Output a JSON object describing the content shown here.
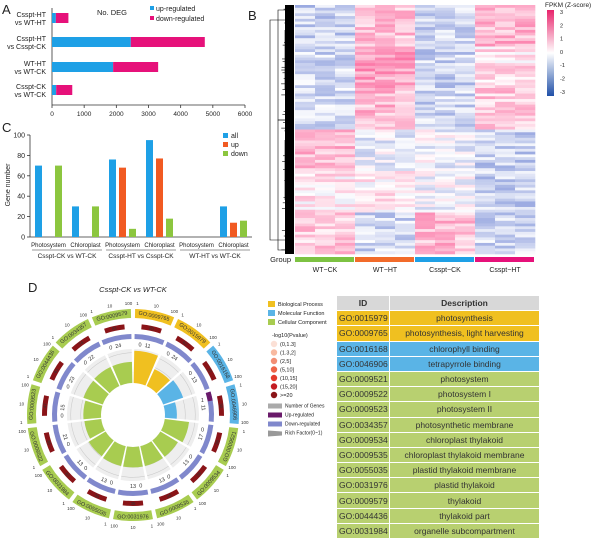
{
  "panels": {
    "a": "A",
    "b": "B",
    "c": "C",
    "d": "D"
  },
  "chart_data": [
    {
      "type": "bar",
      "orientation": "horizontal",
      "stacked": true,
      "title": "No. DEG",
      "categories": [
        "Csspt-HT vs WT-HT",
        "Csspt-HT vs Csspt-CK",
        "WT-HT vs WT-CK",
        "Csspt-CK vs WT-CK"
      ],
      "series": [
        {
          "name": "up-regulated",
          "color": "#1ea0e6",
          "values": [
            120,
            2450,
            1900,
            130
          ]
        },
        {
          "name": "down-regulated",
          "color": "#e6117a",
          "values": [
            390,
            2300,
            1400,
            500
          ]
        }
      ],
      "xlim": [
        0,
        6000
      ],
      "xticks": [
        0,
        1000,
        2000,
        3000,
        4000,
        5000,
        6000
      ],
      "legend": "top-right"
    },
    {
      "type": "heatmap",
      "title": "FPKM (Z-score)",
      "colorbar_ticks": [
        3,
        2,
        1,
        0,
        -1,
        -2,
        -3
      ],
      "group_label": "Group",
      "groups": [
        {
          "name": "WT−CK",
          "color": "#7dc242"
        },
        {
          "name": "WT−HT",
          "color": "#f26b2a"
        },
        {
          "name": "Csspt−CK",
          "color": "#1ea0e6"
        },
        {
          "name": "Csspt−HT",
          "color": "#e6117a"
        }
      ],
      "columns_per_group": 3
    },
    {
      "type": "bar",
      "ylabel": "Gene number",
      "ylim": [
        0,
        100
      ],
      "yticks": [
        0,
        20,
        40,
        60,
        80,
        100
      ],
      "categories": [
        "Photosystem",
        "Chloroplast",
        "Photosystem",
        "Chloroplast",
        "Photosystem",
        "Chloroplast"
      ],
      "comparisons": [
        "Csspt-CK vs WT-CK",
        "Csspt-HT vs Csspt-CK",
        "WT-HT vs WT-CK"
      ],
      "series": [
        {
          "name": "all",
          "color": "#1ea0e6",
          "values": [
            70,
            30,
            76,
            95,
            0,
            30
          ]
        },
        {
          "name": "up",
          "color": "#f15a22",
          "values": [
            0,
            0,
            68,
            77,
            0,
            14
          ]
        },
        {
          "name": "down",
          "color": "#8cc63f",
          "values": [
            70,
            30,
            8,
            18,
            0,
            16
          ]
        }
      ],
      "legend": "top-right"
    },
    {
      "type": "circular",
      "title": "Csspt-CK vs WT-CK",
      "scale_ticks": [
        "1",
        "10",
        "100"
      ],
      "terms": [
        {
          "id": "GO:0009765",
          "cat": "bp",
          "genes": 11,
          "up": 0,
          "p": 20,
          "rich": 0.95
        },
        {
          "id": "GO:0015979",
          "cat": "bp",
          "genes": 24,
          "up": 0,
          "p": 62,
          "rich": 0.55
        },
        {
          "id": "GO:0016168",
          "cat": "mf",
          "genes": 13,
          "up": 0,
          "p": 31,
          "rich": 0.62
        },
        {
          "id": "GO:0046906",
          "cat": "mf",
          "genes": 11,
          "up": 1,
          "p": 30,
          "rich": 0.35
        },
        {
          "id": "GO:0009521",
          "cat": "cc",
          "genes": 17,
          "up": 0,
          "p": 36,
          "rich": 0.72
        },
        {
          "id": "GO:0009534",
          "cat": "cc",
          "genes": 13,
          "up": 0,
          "p": 36,
          "rich": 0.6
        },
        {
          "id": "GO:0009535",
          "cat": "cc",
          "genes": 13,
          "up": 0,
          "p": 36,
          "rich": 0.6
        },
        {
          "id": "GO:0031976",
          "cat": "cc",
          "genes": 13,
          "up": 0,
          "p": 35,
          "rich": 0.6
        },
        {
          "id": "GO:0055035",
          "cat": "cc",
          "genes": 13,
          "up": 0,
          "p": 35,
          "rich": 0.6
        },
        {
          "id": "GO:0031984",
          "cat": "cc",
          "genes": 13,
          "up": 0,
          "p": 30,
          "rich": 0.58
        },
        {
          "id": "GO:0009522",
          "cat": "cc",
          "genes": 21,
          "up": 0,
          "p": 36,
          "rich": 0.5
        },
        {
          "id": "GO:0009523",
          "cat": "cc",
          "genes": 15,
          "up": 0,
          "p": 47,
          "rich": 0.52
        },
        {
          "id": "GO:0044436",
          "cat": "cc",
          "genes": 23,
          "up": 0,
          "p": 61,
          "rich": 0.6
        },
        {
          "id": "GO:0034357",
          "cat": "cc",
          "genes": 22,
          "up": 0,
          "p": 74,
          "rich": 0.62
        },
        {
          "id": "GO:0009579",
          "cat": "cc",
          "genes": 24,
          "up": 0,
          "p": 81,
          "rich": 0.62
        }
      ]
    }
  ],
  "legend_d": {
    "categories": [
      {
        "key": "bp",
        "label": "Biological Process",
        "color": "#f0c020"
      },
      {
        "key": "mf",
        "label": "Molecular Function",
        "color": "#5ab4e6"
      },
      {
        "key": "cc",
        "label": "Cellular Component",
        "color": "#a8cc50"
      }
    ],
    "p_title": "-log10(Pvalue)",
    "p_bins": [
      {
        "label": "(0,1.3]",
        "color": "#fbe0d6"
      },
      {
        "label": "(1.3,2]",
        "color": "#f8b9a0"
      },
      {
        "label": "(2,5]",
        "color": "#f28e74"
      },
      {
        "label": "(5,10]",
        "color": "#ee6448"
      },
      {
        "label": "(10,15]",
        "color": "#e43a2c"
      },
      {
        "label": "(15,20]",
        "color": "#c41c22"
      },
      {
        "label": ">=20",
        "color": "#8a1418"
      }
    ],
    "items": [
      {
        "label": "Number of Genes",
        "color": "#aaaaaa"
      },
      {
        "label": "Up-regulated",
        "color": "#6a1a6a"
      },
      {
        "label": "Down-regulated",
        "color": "#8088cc"
      },
      {
        "label": "Rich Factor(0~1)",
        "color": "#999999"
      }
    ]
  },
  "table": {
    "headers": [
      "ID",
      "Description"
    ],
    "rows": [
      {
        "id": "GO:0015979",
        "desc": "photosynthesis",
        "color": "#f0c020"
      },
      {
        "id": "GO:0009765",
        "desc": "photosynthesis, light harvesting",
        "color": "#f0c020"
      },
      {
        "id": "GO:0016168",
        "desc": "chlorophyll binding",
        "color": "#5ab4e6"
      },
      {
        "id": "GO:0046906",
        "desc": "tetrapyrrole binding",
        "color": "#5ab4e6"
      },
      {
        "id": "GO:0009521",
        "desc": "photosystem",
        "color": "#b8d070"
      },
      {
        "id": "GO:0009522",
        "desc": "photosystem I",
        "color": "#b8d070"
      },
      {
        "id": "GO:0009523",
        "desc": "photosystem II",
        "color": "#b8d070"
      },
      {
        "id": "GO:0034357",
        "desc": "photosynthetic membrane",
        "color": "#b8d070"
      },
      {
        "id": "GO:0009534",
        "desc": "chloroplast thylakoid",
        "color": "#b8d070"
      },
      {
        "id": "GO:0009535",
        "desc": "chloroplast thylakoid membrane",
        "color": "#b8d070"
      },
      {
        "id": "GO:0055035",
        "desc": "plastid thylakoid membrane",
        "color": "#b8d070"
      },
      {
        "id": "GO:0031976",
        "desc": "plastid thylakoid",
        "color": "#b8d070"
      },
      {
        "id": "GO:0009579",
        "desc": "thylakoid",
        "color": "#b8d070"
      },
      {
        "id": "GO:0044436",
        "desc": "thylakoid part",
        "color": "#b8d070"
      },
      {
        "id": "GO:0031984",
        "desc": "organelle subcompartment",
        "color": "#b8d070"
      }
    ]
  }
}
